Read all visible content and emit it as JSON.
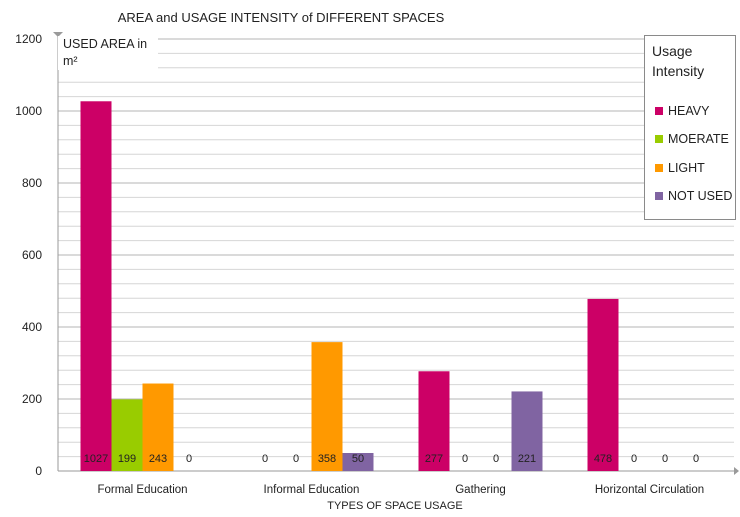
{
  "chart_data": {
    "type": "bar",
    "title": "AREA and USAGE INTENSITY of DIFFERENT SPACES",
    "xlabel": "TYPES OF SPACE USAGE",
    "ylabel_line1": "USED AREA in",
    "ylabel_line2": "m²",
    "ylim": [
      0,
      1200
    ],
    "yticks": [
      0,
      200,
      400,
      600,
      800,
      1000,
      1200
    ],
    "grid": true,
    "legend_title_line1": "Usage",
    "legend_title_line2": "Intensity",
    "legend_position": "top-right",
    "categories": [
      "Formal Education",
      "Informal Education",
      "Gathering",
      "Horizontal Circulation"
    ],
    "series": [
      {
        "name": "HEAVY",
        "color": "#cc0066",
        "values": [
          1027,
          0,
          277,
          478
        ]
      },
      {
        "name": "MOERATE",
        "color": "#99cc00",
        "values": [
          199,
          0,
          0,
          0
        ]
      },
      {
        "name": "LIGHT",
        "color": "#ff9900",
        "values": [
          243,
          358,
          0,
          0
        ]
      },
      {
        "name": "NOT USED",
        "color": "#8064a2",
        "values": [
          0,
          50,
          221,
          0
        ]
      }
    ]
  }
}
